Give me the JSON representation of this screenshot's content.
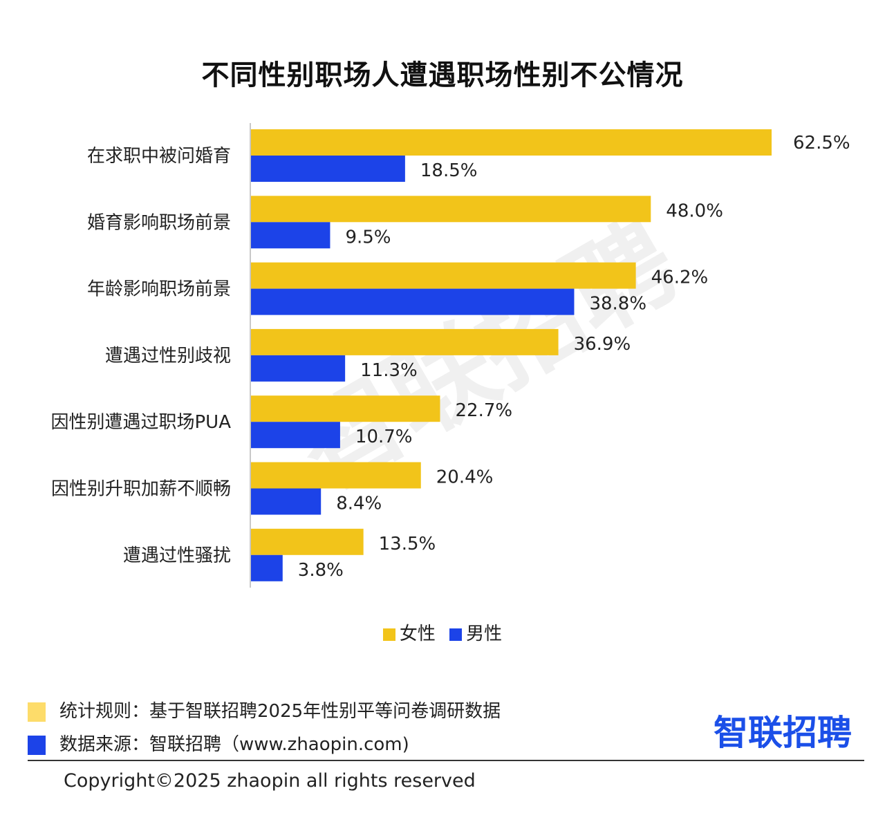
{
  "chart_data": {
    "type": "bar",
    "orientation": "horizontal",
    "title": "不同性别职场人遭遇职场性别不公情况",
    "categories": [
      "在求职中被问婚育",
      "婚育影响职场前景",
      "年龄影响职场前景",
      "遭遇过性别歧视",
      "因性别遭遇过职场PUA",
      "因性别升职加薪不顺畅",
      "遭遇过性骚扰"
    ],
    "series": [
      {
        "name": "女性",
        "values": [
          62.5,
          48.0,
          46.2,
          36.9,
          22.7,
          20.4,
          13.5
        ],
        "labels": [
          "62.5%",
          "48.0%",
          "46.2%",
          "36.9%",
          "22.7%",
          "20.4%",
          "13.5%"
        ],
        "color": "#f2c41a"
      },
      {
        "name": "男性",
        "values": [
          18.5,
          9.5,
          38.8,
          11.3,
          10.7,
          8.4,
          3.8
        ],
        "labels": [
          "18.5%",
          "9.5%",
          "38.8%",
          "11.3%",
          "10.7%",
          "8.4%",
          "3.8%"
        ],
        "color": "#1c43e8"
      }
    ],
    "xlim": [
      0,
      62.5
    ],
    "grid": false,
    "legend": "bottom-center"
  },
  "watermark": "智联招聘",
  "footer": {
    "note_rule": "统计规则：基于智联招聘2025年性别平等问卷调研数据",
    "note_source": "数据来源：智联招聘（www.zhaopin.com)",
    "note_rule_color": "#fddc6a",
    "note_source_color": "#1c43e8",
    "brand": "智联招聘",
    "copyright": "Copyright©2025 zhaopin all rights reserved"
  }
}
